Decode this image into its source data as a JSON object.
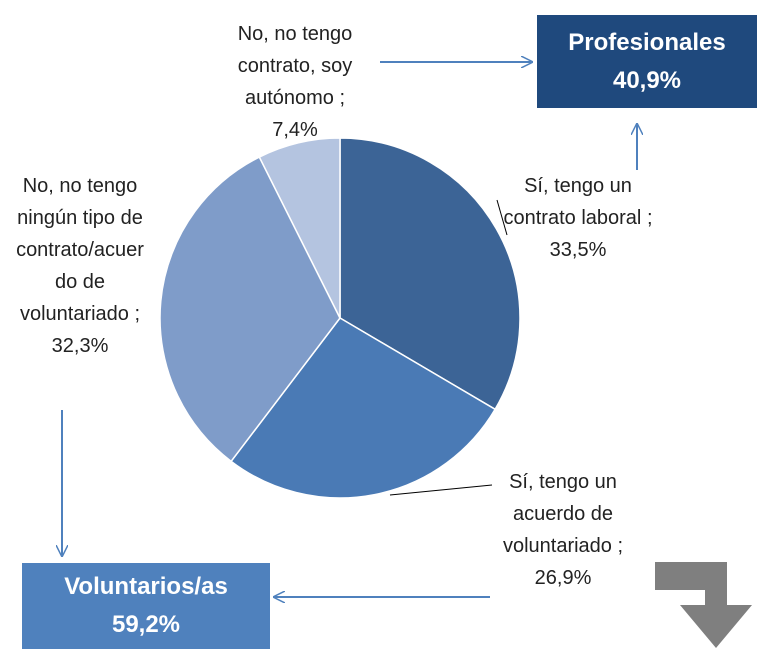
{
  "chart_data": {
    "type": "pie",
    "categories": [
      "Sí, tengo un contrato laboral",
      "Sí, tengo un acuerdo de voluntariado",
      "No, no tengo ningún tipo de contrato/acuerdo de voluntariado",
      "No, no tengo contrato, soy autónomo"
    ],
    "values": [
      33.5,
      26.9,
      32.3,
      7.4
    ],
    "value_labels": [
      "33,5%",
      "26,9%",
      "32,3%",
      "7,4%"
    ],
    "label_separator": ";",
    "colors": [
      "#3c6496",
      "#4a7ab5",
      "#7f9cc9",
      "#b4c4e0"
    ],
    "annotations": [
      {
        "title": "Profesionales",
        "subtitle": "40,9%",
        "color": "#1f497d"
      },
      {
        "title": "Voluntarios/as",
        "subtitle": "59,2%",
        "color": "#4f81bd"
      }
    ]
  }
}
